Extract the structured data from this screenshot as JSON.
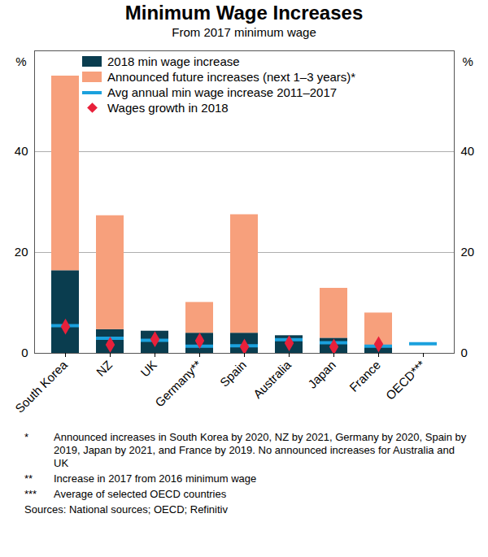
{
  "chart_data": {
    "type": "bar",
    "title": "Minimum Wage Increases",
    "subtitle": "From 2017 minimum wage",
    "y_label": "%",
    "categories": [
      "South Korea",
      "NZ",
      "UK",
      "Germany**",
      "Spain",
      "Australia",
      "Japan",
      "France",
      "OECD***"
    ],
    "series": [
      {
        "name": "2018 min wage increase",
        "type": "bar",
        "color": "#0a3d4f",
        "values": [
          16.4,
          4.7,
          4.4,
          4.0,
          4.0,
          3.5,
          3.0,
          1.2,
          null
        ]
      },
      {
        "name": "Announced future increases (next 1–3 years)*",
        "type": "bar",
        "color": "#f7a07c",
        "values": [
          38.6,
          22.6,
          null,
          6.1,
          23.5,
          null,
          9.9,
          6.8,
          null
        ]
      },
      {
        "name": "Avg annual min wage increase 2011–2017",
        "type": "marker",
        "marker": "dash",
        "color": "#1ba1dd",
        "values": [
          5.5,
          3.0,
          2.6,
          1.4,
          1.5,
          2.7,
          2.1,
          1.4,
          1.9
        ]
      },
      {
        "name": "Wages growth in 2018",
        "type": "marker",
        "marker": "diamond",
        "color": "#e8203a",
        "values": [
          5.3,
          1.7,
          2.8,
          2.5,
          1.3,
          2.0,
          1.3,
          1.8,
          null
        ]
      }
    ],
    "stacked": true,
    "ylim": [
      0,
      60
    ],
    "yticks": [
      0,
      20,
      40
    ],
    "grid": true,
    "legend": "top-left",
    "notes": [
      {
        "symbol": "*",
        "text": "Announced increases in South Korea by 2020, NZ by 2021, Germany by 2020, Spain by 2019, Japan by 2021, and France by 2019. No announced increases for Australia and UK"
      },
      {
        "symbol": "**",
        "text": "Increase in 2017 from 2016 minimum wage"
      },
      {
        "symbol": "***",
        "text": "Average of selected OECD countries"
      }
    ],
    "source": "Sources: National sources; OECD; Refinitiv"
  }
}
